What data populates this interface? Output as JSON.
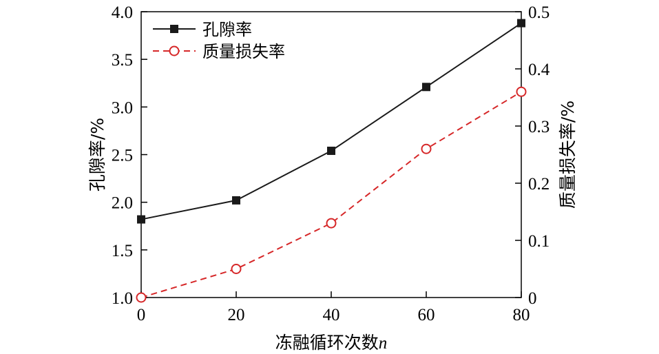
{
  "chart_data": {
    "type": "line",
    "x": [
      0,
      20,
      40,
      60,
      80
    ],
    "xlabel": "冻融循环次数",
    "xlabel_var": "n",
    "xlim": [
      0,
      80
    ],
    "xticks": [
      0,
      20,
      40,
      60,
      80
    ],
    "ylabel_left": "孔隙率/%",
    "ylim_left": [
      1.0,
      4.0
    ],
    "yticks_left": [
      "1.0",
      "1.5",
      "2.0",
      "2.5",
      "3.0",
      "3.5",
      "4.0"
    ],
    "ylabel_right": "质量损失率/%",
    "ylim_right": [
      0,
      0.5
    ],
    "yticks_right": [
      "0",
      "0.1",
      "0.2",
      "0.3",
      "0.4",
      "0.5"
    ],
    "grid": false,
    "legend_position": "top-left",
    "series": [
      {
        "name": "孔隙率",
        "axis": "left",
        "values": [
          1.82,
          2.02,
          2.54,
          3.21,
          3.88
        ],
        "color": "#1a1a1a",
        "line_style": "solid",
        "marker": "filled-square"
      },
      {
        "name": "质量损失率",
        "axis": "right",
        "values": [
          0.0,
          0.05,
          0.13,
          0.26,
          0.36
        ],
        "color": "#d62728",
        "line_style": "dashed",
        "marker": "open-circle"
      }
    ]
  }
}
